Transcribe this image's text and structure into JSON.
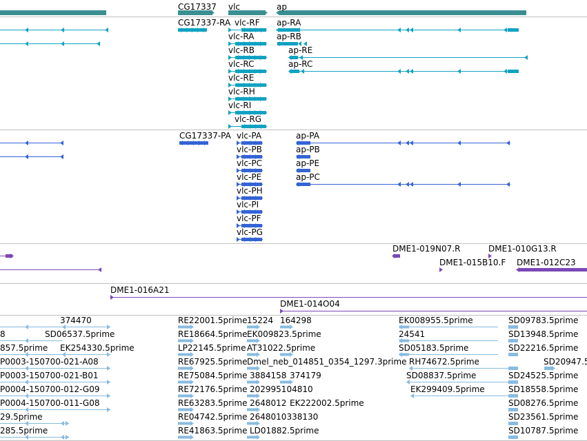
{
  "colors": {
    "gene": "#3a8f92",
    "transcript_flybase": "#11a2c2",
    "transcript_refseq": "#3463d6",
    "clone": "#7c46b8",
    "est": "#88bbe0",
    "divider": "#bfbfbf",
    "background": "#ffffff"
  },
  "gene_labels": [
    "CG17337",
    "vlc",
    "ap"
  ],
  "transcript_labels_a": [
    "CG17337-RA",
    "vlc-RF",
    "ap-RA",
    "vlc-RA",
    "ap-RB",
    "vlc-RB",
    "ap-RE",
    "vlc-RC",
    "ap-RC",
    "vlc-RE",
    "vlc-RH",
    "vlc-RI",
    "vlc-RG"
  ],
  "transcript_labels_b": [
    "CG17337-PA",
    "vlc-PA",
    "ap-PA",
    "vlc-PB",
    "ap-PB",
    "vlc-PC",
    "ap-PE",
    "vlc-PE",
    "ap-PC",
    "vlc-PH",
    "vlc-PI",
    "vlc-PF",
    "vlc-PG"
  ],
  "clone_labels": [
    "DME1-019N07.R",
    "DME1-010G13.R",
    "DME1-015B10.F",
    "DME1-012C23",
    "DME1-016A21",
    "DME1-014O04"
  ],
  "est_labels": [
    "374470",
    "8",
    "SD06537.5prime",
    "857.5prime",
    "EK254330.5prime",
    "P0003-150700-021-A08",
    "P0003-150700-021-B01",
    "P0004-150700-012-G09",
    "P0004-150700-011-G08",
    "29.5prime",
    "285.5prime",
    "RE22001.5prime",
    "15224",
    "164298",
    "RE18664.5prime",
    "EK009823.5prime",
    "LP22145.5prime",
    "AT31022.5prime",
    "RE67925.5prime",
    "Dmel_neb_014851_0354_1297.3prime",
    "RE75084.5prime",
    "3884158",
    "374179",
    "RE72176.5prime",
    "202995104810",
    "RE63283.5prime",
    "2648012",
    "EK222002.5prime",
    "RE04742.5prime",
    "2648010338130",
    "RE41863.5prime",
    "LD01882.5prime",
    "EK008955.5prime",
    "24541",
    "SD05183.5prime",
    "RH74672.5prime",
    "SD08837.5prime",
    "EK299409.5prime",
    "SD09783.5prime",
    "SD13948.5prime",
    "SD22216.5prime",
    "SD20947.5",
    "SD24525.5prime",
    "SD18558.5prime",
    "SD08276.5prime",
    "SD23561.5prime",
    "SD10787.5prime"
  ]
}
